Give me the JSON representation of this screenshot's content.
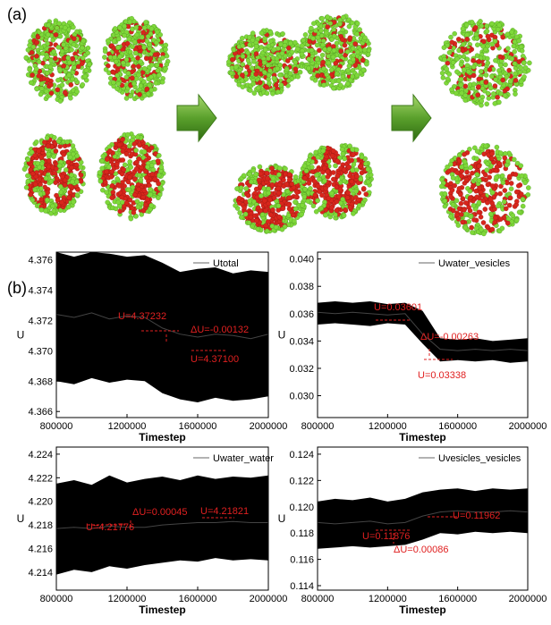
{
  "panels": [
    "(a)",
    "(b)"
  ],
  "chart_data": [
    {
      "type": "band",
      "xlabel": "Timestep",
      "ylabel": "U",
      "xlim": [
        800000,
        2000000
      ],
      "xticks": [
        800000,
        1200000,
        1600000,
        2000000
      ],
      "ylim": [
        4.3656,
        4.3765
      ],
      "yticks": [
        4.366,
        4.368,
        {
          "value": 4.37,
          "label": "4.370"
        },
        4.372,
        4.374,
        4.376
      ],
      "x": [
        800000,
        900000,
        1000000,
        1100000,
        1200000,
        1300000,
        1400000,
        1500000,
        1600000,
        1700000,
        1800000,
        1900000,
        2000000
      ],
      "series": [
        {
          "name": "Utotal",
          "color": "#000000",
          "values": [
            4.3724,
            4.3722,
            4.3725,
            4.3721,
            4.3723,
            4.3722,
            4.3715,
            4.3711,
            4.3709,
            4.3711,
            4.371,
            4.3708,
            4.3711
          ],
          "low": [
            4.368,
            4.3678,
            4.3682,
            4.3679,
            4.3681,
            4.368,
            4.3672,
            4.3668,
            4.3666,
            4.3669,
            4.3667,
            4.3668,
            4.367
          ],
          "high": [
            4.3765,
            4.3762,
            4.3765,
            4.3764,
            4.3762,
            4.3763,
            4.3758,
            4.3752,
            4.3754,
            4.3755,
            4.3751,
            4.3753,
            4.3752
          ]
        }
      ],
      "annotations": [
        "U=4.37232",
        "ΔU=-0.00132",
        "U=4.37100"
      ]
    },
    {
      "type": "band",
      "xlabel": "Timestep",
      "ylabel": "U",
      "xlim": [
        800000,
        2000000
      ],
      "xticks": [
        800000,
        1200000,
        1600000,
        2000000
      ],
      "ylim": [
        0.0284,
        0.0405
      ],
      "yticks": [
        {
          "value": 0.03,
          "label": "0.030"
        },
        0.032,
        0.034,
        0.036,
        0.038,
        {
          "value": 0.04,
          "label": "0.040"
        }
      ],
      "x": [
        800000,
        900000,
        1000000,
        1100000,
        1200000,
        1300000,
        1400000,
        1500000,
        1600000,
        1700000,
        1800000,
        1900000,
        2000000
      ],
      "series": [
        {
          "name": "Uwater_vesicles",
          "color": "#000000",
          "values": [
            0.0361,
            0.036,
            0.0361,
            0.036,
            0.0359,
            0.036,
            0.0345,
            0.0334,
            0.0333,
            0.0334,
            0.0333,
            0.0334,
            0.0333
          ],
          "low": [
            0.0352,
            0.0353,
            0.0352,
            0.0351,
            0.0353,
            0.0352,
            0.0338,
            0.0325,
            0.0326,
            0.0325,
            0.0326,
            0.0324,
            0.0325
          ],
          "high": [
            0.0368,
            0.0369,
            0.0368,
            0.0369,
            0.0367,
            0.0368,
            0.0362,
            0.0342,
            0.0341,
            0.0342,
            0.034,
            0.0341,
            0.0342
          ]
        }
      ],
      "annotations": [
        "U=0.03601",
        "ΔU=-0.00263",
        "U=0.03338"
      ]
    },
    {
      "type": "band",
      "xlabel": "Timestep",
      "ylabel": "U",
      "xlim": [
        800000,
        2000000
      ],
      "xticks": [
        800000,
        1200000,
        1600000,
        2000000
      ],
      "ylim": [
        4.21248,
        4.2246
      ],
      "yticks": [
        4.214,
        4.216,
        4.218,
        {
          "value": 4.22,
          "label": "4.220"
        },
        4.222,
        4.224
      ],
      "x": [
        800000,
        900000,
        1000000,
        1100000,
        1200000,
        1300000,
        1400000,
        1500000,
        1600000,
        1700000,
        1800000,
        1900000,
        2000000
      ],
      "series": [
        {
          "name": "Uwater_water",
          "color": "#000000",
          "values": [
            4.2177,
            4.2178,
            4.2177,
            4.2179,
            4.2178,
            4.2178,
            4.218,
            4.2181,
            4.2182,
            4.2182,
            4.2183,
            4.2182,
            4.2182
          ],
          "low": [
            4.2138,
            4.2142,
            4.214,
            4.2145,
            4.2143,
            4.2146,
            4.2148,
            4.215,
            4.2149,
            4.2152,
            4.215,
            4.2151,
            4.215
          ],
          "high": [
            4.2215,
            4.2218,
            4.2214,
            4.2222,
            4.2216,
            4.2219,
            4.2221,
            4.2218,
            4.2222,
            4.2219,
            4.2221,
            4.222,
            4.2222
          ]
        }
      ],
      "annotations": [
        "U=4.21776",
        "ΔU=0.00045",
        "U=4.21821"
      ]
    },
    {
      "type": "band",
      "xlabel": "Timestep",
      "ylabel": "U",
      "xlim": [
        800000,
        2000000
      ],
      "xticks": [
        800000,
        1200000,
        1600000,
        2000000
      ],
      "ylim": [
        0.11366,
        0.12454
      ],
      "yticks": [
        0.114,
        0.116,
        0.118,
        {
          "value": 0.12,
          "label": "0.120"
        },
        0.122,
        0.124
      ],
      "x": [
        800000,
        900000,
        1000000,
        1100000,
        1200000,
        1300000,
        1400000,
        1500000,
        1600000,
        1700000,
        1800000,
        1900000,
        2000000
      ],
      "series": [
        {
          "name": "Uvesicles_vesicles",
          "color": "#000000",
          "values": [
            0.1188,
            0.1187,
            0.1188,
            0.1189,
            0.1187,
            0.1188,
            0.1193,
            0.1196,
            0.1197,
            0.1196,
            0.1196,
            0.1197,
            0.1196
          ],
          "low": [
            0.1168,
            0.1169,
            0.117,
            0.1169,
            0.117,
            0.1171,
            0.1175,
            0.118,
            0.1179,
            0.1181,
            0.118,
            0.1181,
            0.118
          ],
          "high": [
            0.1204,
            0.1206,
            0.1205,
            0.1207,
            0.1204,
            0.1206,
            0.1211,
            0.1213,
            0.1214,
            0.1212,
            0.1214,
            0.1213,
            0.1214
          ]
        }
      ],
      "annotations": [
        "U=0.11962",
        "U=0.11876",
        "ΔU=0.00086"
      ]
    }
  ]
}
